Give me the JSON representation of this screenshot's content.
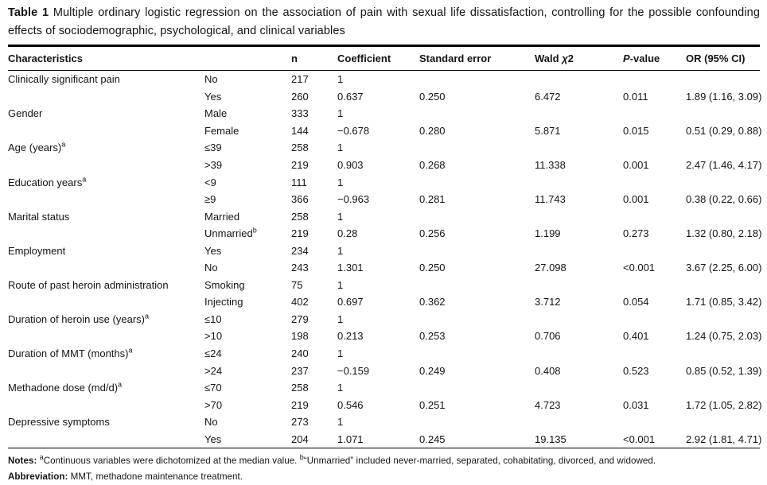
{
  "title": {
    "label": "Table 1",
    "caption": " Multiple ordinary logistic regression on the association of pain with sexual life dissatisfaction, controlling for the possible confounding effects of sociodemographic, psychological, and clinical variables"
  },
  "table": {
    "headers": [
      [
        {
          "t": "Characteristics"
        }
      ],
      [],
      [
        {
          "t": "n"
        }
      ],
      [
        {
          "t": "Coefficient"
        }
      ],
      [
        {
          "t": "Standard error"
        }
      ],
      [
        {
          "t": "Wald "
        },
        {
          "t": "χ",
          "i": true
        },
        {
          "t": "2"
        }
      ],
      [
        {
          "t": "P",
          "i": true
        },
        {
          "t": "-value"
        }
      ],
      [
        {
          "t": "OR (95% CI)"
        }
      ]
    ],
    "rows": [
      {
        "characteristic": "Clinically significant pain",
        "characteristic_sup": "",
        "category": "No",
        "category_sup": "",
        "n": "217",
        "coefficient": "1",
        "standard_error": "",
        "wald_chi2": "",
        "p_value": "",
        "or_95ci": ""
      },
      {
        "characteristic": "",
        "characteristic_sup": "",
        "category": "Yes",
        "category_sup": "",
        "n": "260",
        "coefficient": "0.637",
        "standard_error": "0.250",
        "wald_chi2": "6.472",
        "p_value": "0.011",
        "or_95ci": "1.89 (1.16, 3.09)"
      },
      {
        "characteristic": "Gender",
        "characteristic_sup": "",
        "category": "Male",
        "category_sup": "",
        "n": "333",
        "coefficient": "1",
        "standard_error": "",
        "wald_chi2": "",
        "p_value": "",
        "or_95ci": ""
      },
      {
        "characteristic": "",
        "characteristic_sup": "",
        "category": "Female",
        "category_sup": "",
        "n": "144",
        "coefficient": "−0.678",
        "standard_error": "0.280",
        "wald_chi2": "5.871",
        "p_value": "0.015",
        "or_95ci": "0.51 (0.29, 0.88)"
      },
      {
        "characteristic": "Age (years)",
        "characteristic_sup": "a",
        "category": "≤39",
        "category_sup": "",
        "n": "258",
        "coefficient": "1",
        "standard_error": "",
        "wald_chi2": "",
        "p_value": "",
        "or_95ci": ""
      },
      {
        "characteristic": "",
        "characteristic_sup": "",
        "category": ">39",
        "category_sup": "",
        "n": "219",
        "coefficient": "0.903",
        "standard_error": "0.268",
        "wald_chi2": "11.338",
        "p_value": "0.001",
        "or_95ci": "2.47 (1.46, 4.17)"
      },
      {
        "characteristic": "Education years",
        "characteristic_sup": "a",
        "category": "<9",
        "category_sup": "",
        "n": "111",
        "coefficient": "1",
        "standard_error": "",
        "wald_chi2": "",
        "p_value": "",
        "or_95ci": ""
      },
      {
        "characteristic": "",
        "characteristic_sup": "",
        "category": "≥9",
        "category_sup": "",
        "n": "366",
        "coefficient": "−0.963",
        "standard_error": "0.281",
        "wald_chi2": "11.743",
        "p_value": "0.001",
        "or_95ci": "0.38 (0.22, 0.66)"
      },
      {
        "characteristic": "Marital status",
        "characteristic_sup": "",
        "category": "Married",
        "category_sup": "",
        "n": "258",
        "coefficient": "1",
        "standard_error": "",
        "wald_chi2": "",
        "p_value": "",
        "or_95ci": ""
      },
      {
        "characteristic": "",
        "characteristic_sup": "",
        "category": "Unmarried",
        "category_sup": "b",
        "n": "219",
        "coefficient": "0.28",
        "standard_error": "0.256",
        "wald_chi2": "1.199",
        "p_value": "0.273",
        "or_95ci": "1.32 (0.80, 2.18)"
      },
      {
        "characteristic": "Employment",
        "characteristic_sup": "",
        "category": "Yes",
        "category_sup": "",
        "n": "234",
        "coefficient": "1",
        "standard_error": "",
        "wald_chi2": "",
        "p_value": "",
        "or_95ci": ""
      },
      {
        "characteristic": "",
        "characteristic_sup": "",
        "category": "No",
        "category_sup": "",
        "n": "243",
        "coefficient": "1.301",
        "standard_error": "0.250",
        "wald_chi2": "27.098",
        "p_value": "<0.001",
        "or_95ci": "3.67 (2.25, 6.00)"
      },
      {
        "characteristic": "Route of past heroin administration",
        "characteristic_sup": "",
        "category": "Smoking",
        "category_sup": "",
        "n": "75",
        "coefficient": "1",
        "standard_error": "",
        "wald_chi2": "",
        "p_value": "",
        "or_95ci": ""
      },
      {
        "characteristic": "",
        "characteristic_sup": "",
        "category": "Injecting",
        "category_sup": "",
        "n": "402",
        "coefficient": "0.697",
        "standard_error": "0.362",
        "wald_chi2": "3.712",
        "p_value": "0.054",
        "or_95ci": "1.71 (0.85, 3.42)"
      },
      {
        "characteristic": "Duration of heroin use (years)",
        "characteristic_sup": "a",
        "category": "≤10",
        "category_sup": "",
        "n": "279",
        "coefficient": "1",
        "standard_error": "",
        "wald_chi2": "",
        "p_value": "",
        "or_95ci": ""
      },
      {
        "characteristic": "",
        "characteristic_sup": "",
        "category": ">10",
        "category_sup": "",
        "n": "198",
        "coefficient": "0.213",
        "standard_error": "0.253",
        "wald_chi2": "0.706",
        "p_value": "0.401",
        "or_95ci": "1.24 (0.75, 2.03)"
      },
      {
        "characteristic": "Duration of MMT (months)",
        "characteristic_sup": "a",
        "category": "≤24",
        "category_sup": "",
        "n": "240",
        "coefficient": "1",
        "standard_error": "",
        "wald_chi2": "",
        "p_value": "",
        "or_95ci": ""
      },
      {
        "characteristic": "",
        "characteristic_sup": "",
        "category": ">24",
        "category_sup": "",
        "n": "237",
        "coefficient": "−0.159",
        "standard_error": "0.249",
        "wald_chi2": "0.408",
        "p_value": "0.523",
        "or_95ci": "0.85 (0.52, 1.39)"
      },
      {
        "characteristic": "Methadone dose (md/d)",
        "characteristic_sup": "a",
        "category": "≤70",
        "category_sup": "",
        "n": "258",
        "coefficient": "1",
        "standard_error": "",
        "wald_chi2": "",
        "p_value": "",
        "or_95ci": ""
      },
      {
        "characteristic": "",
        "characteristic_sup": "",
        "category": ">70",
        "category_sup": "",
        "n": "219",
        "coefficient": "0.546",
        "standard_error": "0.251",
        "wald_chi2": "4.723",
        "p_value": "0.031",
        "or_95ci": "1.72 (1.05, 2.82)"
      },
      {
        "characteristic": "Depressive symptoms",
        "characteristic_sup": "",
        "category": "No",
        "category_sup": "",
        "n": "273",
        "coefficient": "1",
        "standard_error": "",
        "wald_chi2": "",
        "p_value": "",
        "or_95ci": ""
      },
      {
        "characteristic": "",
        "characteristic_sup": "",
        "category": "Yes",
        "category_sup": "",
        "n": "204",
        "coefficient": "1.071",
        "standard_error": "0.245",
        "wald_chi2": "19.135",
        "p_value": "<0.001",
        "or_95ci": "2.92 (1.81, 4.71)"
      }
    ]
  },
  "notes": {
    "label": "Notes: ",
    "note_a_sup": "a",
    "note_a": "Continuous variables were dichotomized at the median value. ",
    "note_b_sup": "b",
    "note_b": "“Unmarried” included never-married, separated, cohabitating, divorced, and widowed.",
    "abbrev_label": "Abbreviation: ",
    "abbrev_text": "MMT, methadone maintenance treatment."
  }
}
